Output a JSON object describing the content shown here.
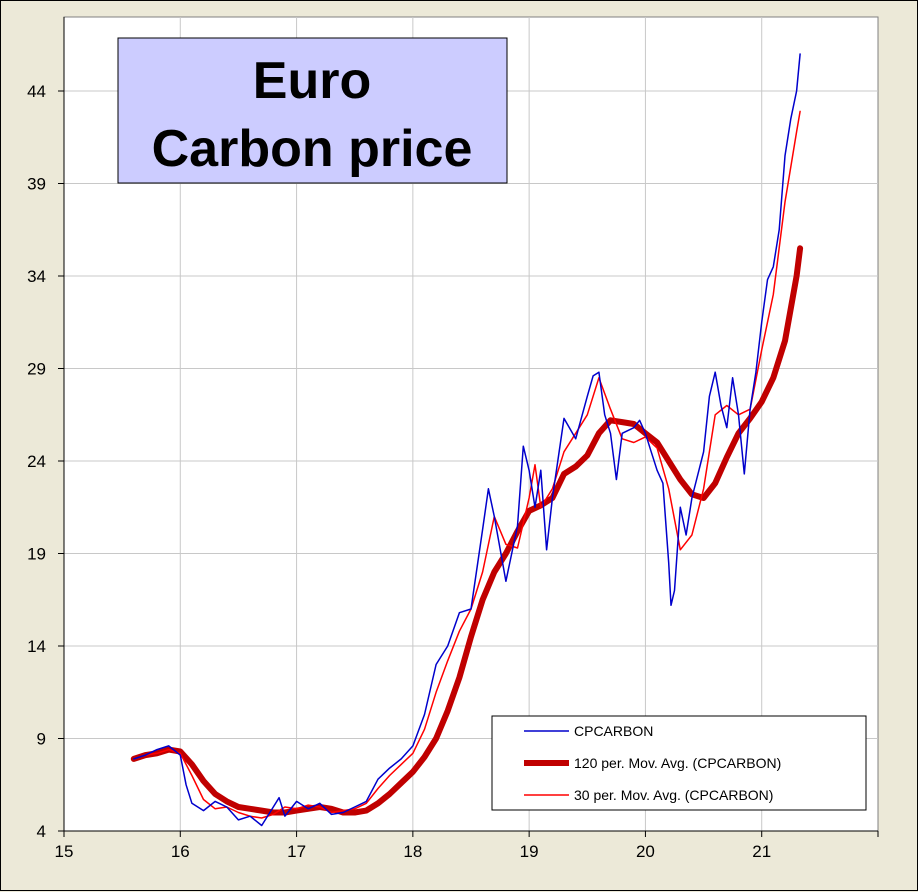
{
  "chart_data": {
    "type": "line",
    "title": "Euro\nCarbon price",
    "title_lines": [
      "Euro",
      "Carbon price"
    ],
    "xlabel": "",
    "ylabel": "",
    "xlim": [
      15,
      22
    ],
    "ylim": [
      4,
      48
    ],
    "x_ticks": [
      15,
      16,
      17,
      18,
      19,
      20,
      21
    ],
    "y_ticks": [
      4,
      9,
      14,
      19,
      24,
      29,
      34,
      39,
      44
    ],
    "grid": true,
    "legend_position": "bottom-right",
    "background": "#ffffff",
    "title_box_color": "#ccccff",
    "series": [
      {
        "name": "CPCARBON",
        "color": "#0000cc",
        "width": "thin",
        "points": [
          [
            15.6,
            7.9
          ],
          [
            15.7,
            8.1
          ],
          [
            15.8,
            8.4
          ],
          [
            15.9,
            8.6
          ],
          [
            16.0,
            8.1
          ],
          [
            16.05,
            6.5
          ],
          [
            16.1,
            5.5
          ],
          [
            16.2,
            5.1
          ],
          [
            16.3,
            5.6
          ],
          [
            16.4,
            5.3
          ],
          [
            16.5,
            4.6
          ],
          [
            16.6,
            4.8
          ],
          [
            16.7,
            4.3
          ],
          [
            16.8,
            5.3
          ],
          [
            16.85,
            5.8
          ],
          [
            16.9,
            4.8
          ],
          [
            17.0,
            5.6
          ],
          [
            17.1,
            5.2
          ],
          [
            17.2,
            5.5
          ],
          [
            17.3,
            4.9
          ],
          [
            17.4,
            5.0
          ],
          [
            17.5,
            5.3
          ],
          [
            17.6,
            5.6
          ],
          [
            17.7,
            6.8
          ],
          [
            17.8,
            7.4
          ],
          [
            17.9,
            7.9
          ],
          [
            18.0,
            8.6
          ],
          [
            18.1,
            10.3
          ],
          [
            18.2,
            13.0
          ],
          [
            18.3,
            14.0
          ],
          [
            18.4,
            15.8
          ],
          [
            18.5,
            16.0
          ],
          [
            18.6,
            20.3
          ],
          [
            18.65,
            22.5
          ],
          [
            18.7,
            21.0
          ],
          [
            18.8,
            17.5
          ],
          [
            18.9,
            20.5
          ],
          [
            18.95,
            24.8
          ],
          [
            19.0,
            23.5
          ],
          [
            19.05,
            21.5
          ],
          [
            19.1,
            23.5
          ],
          [
            19.15,
            19.2
          ],
          [
            19.2,
            22.0
          ],
          [
            19.3,
            26.3
          ],
          [
            19.4,
            25.2
          ],
          [
            19.5,
            27.5
          ],
          [
            19.55,
            28.6
          ],
          [
            19.6,
            28.8
          ],
          [
            19.65,
            26.5
          ],
          [
            19.7,
            25.5
          ],
          [
            19.75,
            23.0
          ],
          [
            19.8,
            25.5
          ],
          [
            19.9,
            25.8
          ],
          [
            19.95,
            26.2
          ],
          [
            20.0,
            25.5
          ],
          [
            20.05,
            24.5
          ],
          [
            20.1,
            23.5
          ],
          [
            20.15,
            22.8
          ],
          [
            20.2,
            18.5
          ],
          [
            20.22,
            16.2
          ],
          [
            20.25,
            17.0
          ],
          [
            20.3,
            21.5
          ],
          [
            20.35,
            20.0
          ],
          [
            20.4,
            22.0
          ],
          [
            20.5,
            24.5
          ],
          [
            20.55,
            27.5
          ],
          [
            20.6,
            28.8
          ],
          [
            20.65,
            27.0
          ],
          [
            20.7,
            25.8
          ],
          [
            20.75,
            28.5
          ],
          [
            20.8,
            26.5
          ],
          [
            20.85,
            23.3
          ],
          [
            20.9,
            26.8
          ],
          [
            20.95,
            28.8
          ],
          [
            21.0,
            31.5
          ],
          [
            21.05,
            33.8
          ],
          [
            21.1,
            34.5
          ],
          [
            21.15,
            36.5
          ],
          [
            21.2,
            40.5
          ],
          [
            21.25,
            42.5
          ],
          [
            21.3,
            44.0
          ],
          [
            21.33,
            46.0
          ]
        ]
      },
      {
        "name": "120 per. Mov. Avg. (CPCARBON)",
        "color": "#c00000",
        "width": "thick",
        "points": [
          [
            15.6,
            7.9
          ],
          [
            15.7,
            8.1
          ],
          [
            15.8,
            8.2
          ],
          [
            15.9,
            8.4
          ],
          [
            16.0,
            8.3
          ],
          [
            16.1,
            7.6
          ],
          [
            16.2,
            6.7
          ],
          [
            16.3,
            6.0
          ],
          [
            16.4,
            5.6
          ],
          [
            16.5,
            5.3
          ],
          [
            16.6,
            5.2
          ],
          [
            16.7,
            5.1
          ],
          [
            16.8,
            5.0
          ],
          [
            16.9,
            5.0
          ],
          [
            17.0,
            5.1
          ],
          [
            17.1,
            5.2
          ],
          [
            17.2,
            5.3
          ],
          [
            17.3,
            5.2
          ],
          [
            17.4,
            5.0
          ],
          [
            17.5,
            5.0
          ],
          [
            17.6,
            5.1
          ],
          [
            17.7,
            5.5
          ],
          [
            17.8,
            6.0
          ],
          [
            17.9,
            6.6
          ],
          [
            18.0,
            7.2
          ],
          [
            18.1,
            8.0
          ],
          [
            18.2,
            9.0
          ],
          [
            18.3,
            10.5
          ],
          [
            18.4,
            12.3
          ],
          [
            18.5,
            14.5
          ],
          [
            18.6,
            16.5
          ],
          [
            18.7,
            18.0
          ],
          [
            18.8,
            19.0
          ],
          [
            18.9,
            20.2
          ],
          [
            19.0,
            21.3
          ],
          [
            19.1,
            21.6
          ],
          [
            19.2,
            22.0
          ],
          [
            19.3,
            23.3
          ],
          [
            19.4,
            23.7
          ],
          [
            19.5,
            24.3
          ],
          [
            19.6,
            25.5
          ],
          [
            19.7,
            26.2
          ],
          [
            19.8,
            26.1
          ],
          [
            19.9,
            26.0
          ],
          [
            20.0,
            25.5
          ],
          [
            20.1,
            25.0
          ],
          [
            20.2,
            24.0
          ],
          [
            20.3,
            23.0
          ],
          [
            20.4,
            22.2
          ],
          [
            20.5,
            22.0
          ],
          [
            20.6,
            22.8
          ],
          [
            20.7,
            24.2
          ],
          [
            20.8,
            25.5
          ],
          [
            20.9,
            26.3
          ],
          [
            21.0,
            27.2
          ],
          [
            21.1,
            28.5
          ],
          [
            21.2,
            30.5
          ],
          [
            21.3,
            34.0
          ],
          [
            21.33,
            35.5
          ]
        ]
      },
      {
        "name": "30 per. Mov. Avg. (CPCARBON)",
        "color": "#ff0000",
        "width": "thin",
        "points": [
          [
            15.6,
            7.9
          ],
          [
            15.7,
            8.1
          ],
          [
            15.8,
            8.2
          ],
          [
            15.9,
            8.4
          ],
          [
            16.0,
            8.2
          ],
          [
            16.1,
            7.0
          ],
          [
            16.2,
            5.7
          ],
          [
            16.3,
            5.2
          ],
          [
            16.4,
            5.3
          ],
          [
            16.5,
            5.0
          ],
          [
            16.6,
            4.8
          ],
          [
            16.7,
            4.7
          ],
          [
            16.8,
            4.9
          ],
          [
            16.9,
            5.3
          ],
          [
            17.0,
            5.2
          ],
          [
            17.1,
            5.4
          ],
          [
            17.2,
            5.3
          ],
          [
            17.3,
            5.0
          ],
          [
            17.4,
            5.1
          ],
          [
            17.5,
            5.2
          ],
          [
            17.6,
            5.5
          ],
          [
            17.7,
            6.3
          ],
          [
            17.8,
            7.0
          ],
          [
            17.9,
            7.6
          ],
          [
            18.0,
            8.2
          ],
          [
            18.1,
            9.5
          ],
          [
            18.2,
            11.5
          ],
          [
            18.3,
            13.2
          ],
          [
            18.4,
            14.8
          ],
          [
            18.5,
            16.0
          ],
          [
            18.6,
            18.0
          ],
          [
            18.7,
            21.0
          ],
          [
            18.8,
            19.5
          ],
          [
            18.9,
            19.3
          ],
          [
            19.0,
            22.0
          ],
          [
            19.05,
            23.8
          ],
          [
            19.1,
            21.5
          ],
          [
            19.2,
            22.5
          ],
          [
            19.3,
            24.5
          ],
          [
            19.4,
            25.5
          ],
          [
            19.5,
            26.5
          ],
          [
            19.6,
            28.5
          ],
          [
            19.7,
            26.8
          ],
          [
            19.8,
            25.2
          ],
          [
            19.9,
            25.0
          ],
          [
            20.0,
            25.3
          ],
          [
            20.1,
            24.7
          ],
          [
            20.2,
            22.5
          ],
          [
            20.3,
            19.2
          ],
          [
            20.4,
            20.0
          ],
          [
            20.5,
            22.5
          ],
          [
            20.6,
            26.5
          ],
          [
            20.7,
            27.0
          ],
          [
            20.8,
            26.5
          ],
          [
            20.9,
            26.8
          ],
          [
            21.0,
            30.0
          ],
          [
            21.1,
            33.0
          ],
          [
            21.2,
            38.0
          ],
          [
            21.3,
            41.8
          ],
          [
            21.33,
            42.9
          ]
        ]
      }
    ]
  }
}
